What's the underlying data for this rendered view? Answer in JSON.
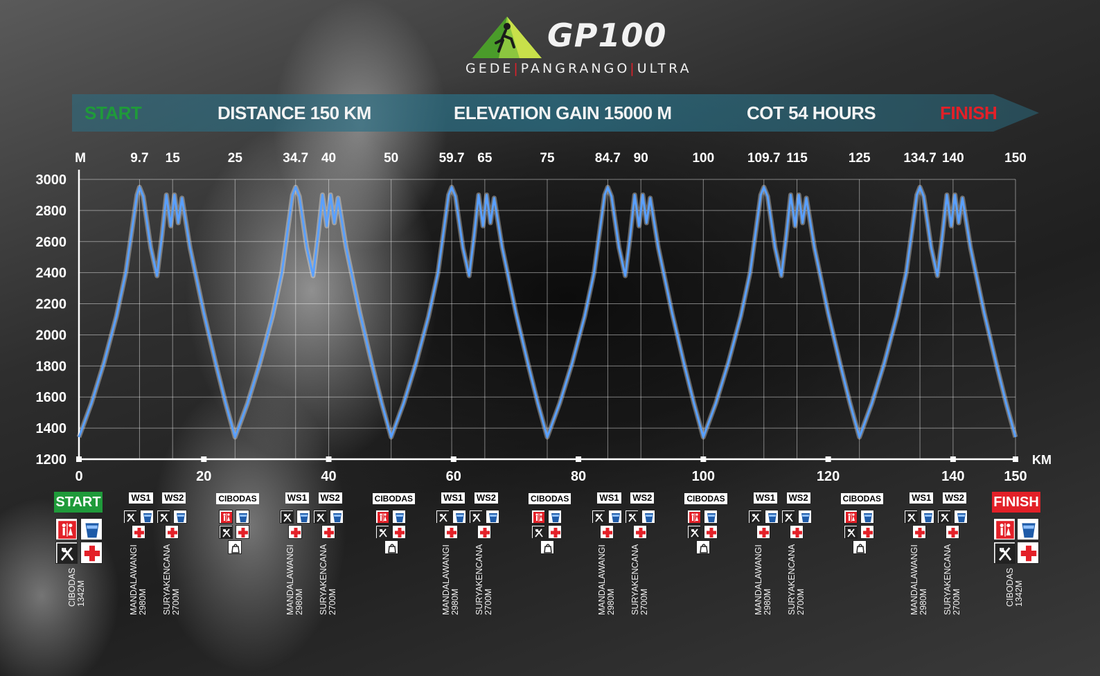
{
  "logo": {
    "title": "GP100",
    "sub_parts": [
      "GEDE",
      "PANGRANGO",
      "ULTRA"
    ]
  },
  "banner": {
    "start": "START",
    "distance": "DISTANCE 150 KM",
    "elevation": "ELEVATION GAIN 15000 M",
    "cot": "COT 54 HOURS",
    "finish": "FINISH"
  },
  "colors": {
    "start_green": "#1f9a3a",
    "finish_red": "#e32028",
    "line_blue": "#5aa0ff",
    "banner_teal": "#2a6f85"
  },
  "chart_data": {
    "type": "line",
    "ylabel": "M",
    "xlabel": "KM",
    "ylim": [
      1200,
      3000
    ],
    "xlim": [
      0,
      150
    ],
    "y_ticks": [
      1200,
      1400,
      1600,
      1800,
      2000,
      2200,
      2400,
      2600,
      2800,
      3000
    ],
    "x_ticks_bottom": [
      0,
      20,
      40,
      60,
      80,
      100,
      120,
      140,
      150
    ],
    "x_ticks_top": [
      "9.7",
      "15",
      "25",
      "34.7",
      "40",
      "50",
      "59.7",
      "65",
      "75",
      "84.7",
      "90",
      "100",
      "109.7",
      "115",
      "125",
      "134.7",
      "140",
      "150"
    ],
    "grid": true,
    "series": [
      {
        "x": [
          0,
          2,
          4,
          6,
          7.5,
          9.3,
          9.7,
          10.3,
          11.5,
          12.5,
          13.3,
          14,
          14.7,
          15.3,
          15.9,
          16.5,
          17.8,
          20,
          22,
          23.5,
          25,
          27,
          29,
          31,
          32.5,
          34.2,
          34.7,
          35.3,
          36.5,
          37.5,
          38.3,
          39,
          39.7,
          40.3,
          40.9,
          41.5,
          42.8,
          45,
          47,
          48.5,
          50,
          52,
          54,
          56,
          57.5,
          59.2,
          59.7,
          60.3,
          61.5,
          62.5,
          63.3,
          64,
          64.7,
          65.3,
          65.9,
          66.5,
          67.8,
          70,
          72,
          73.5,
          75,
          77,
          79,
          81,
          82.5,
          84.2,
          84.7,
          85.3,
          86.5,
          87.5,
          88.3,
          89,
          89.7,
          90.3,
          90.9,
          91.5,
          92.8,
          95,
          97,
          98.5,
          100,
          102,
          104,
          106,
          107.5,
          109.2,
          109.7,
          110.3,
          111.5,
          112.5,
          113.3,
          114,
          114.7,
          115.3,
          115.9,
          116.5,
          117.8,
          120,
          122,
          123.5,
          125,
          127,
          129,
          131,
          132.5,
          134.2,
          134.7,
          135.3,
          136.5,
          137.5,
          138.3,
          139,
          139.7,
          140.3,
          140.9,
          141.5,
          142.8,
          145,
          147,
          148.5,
          150
        ],
        "y": [
          1342,
          1560,
          1820,
          2120,
          2400,
          2900,
          2950,
          2890,
          2560,
          2380,
          2640,
          2900,
          2700,
          2900,
          2720,
          2880,
          2560,
          2140,
          1800,
          1560,
          1342,
          1560,
          1820,
          2120,
          2400,
          2900,
          2950,
          2890,
          2560,
          2380,
          2640,
          2900,
          2700,
          2900,
          2720,
          2880,
          2560,
          2140,
          1800,
          1560,
          1342,
          1560,
          1820,
          2120,
          2400,
          2900,
          2950,
          2890,
          2560,
          2380,
          2640,
          2900,
          2700,
          2900,
          2720,
          2880,
          2560,
          2140,
          1800,
          1560,
          1342,
          1560,
          1820,
          2120,
          2400,
          2900,
          2950,
          2890,
          2560,
          2380,
          2640,
          2900,
          2700,
          2900,
          2720,
          2880,
          2560,
          2140,
          1800,
          1560,
          1342,
          1560,
          1820,
          2120,
          2400,
          2900,
          2950,
          2890,
          2560,
          2380,
          2640,
          2900,
          2700,
          2900,
          2720,
          2880,
          2560,
          2140,
          1800,
          1560,
          1342,
          1560,
          1820,
          2120,
          2400,
          2900,
          2950,
          2890,
          2560,
          2380,
          2640,
          2900,
          2700,
          2900,
          2720,
          2880,
          2560,
          2140,
          1800,
          1560,
          1342
        ]
      }
    ]
  },
  "checkpoints": {
    "start": {
      "label": "START",
      "name": "CIBODAS",
      "elev": "1342M",
      "icons": [
        "toilet-icon",
        "water-icon",
        "food-icon",
        "medical-icon"
      ]
    },
    "finish": {
      "label": "FINISH",
      "name": "CIBODAS",
      "elev": "1342M",
      "icons": [
        "toilet-icon",
        "water-icon",
        "food-icon",
        "medical-icon"
      ]
    },
    "stations": [
      {
        "type": "ws",
        "label": "WS1",
        "km": 9.7,
        "name": "MANDALAWANGI",
        "elev": "2980M"
      },
      {
        "type": "ws",
        "label": "WS2",
        "km": 15,
        "name": "SURYAKENCANA",
        "elev": "2700M"
      },
      {
        "type": "cib",
        "label": "CIBODAS",
        "km": 25
      },
      {
        "type": "ws",
        "label": "WS1",
        "km": 34.7,
        "name": "MANDALAWANGI",
        "elev": "2980M"
      },
      {
        "type": "ws",
        "label": "WS2",
        "km": 40,
        "name": "SURYAKENCANA",
        "elev": "2700M"
      },
      {
        "type": "cib",
        "label": "CIBODAS",
        "km": 50
      },
      {
        "type": "ws",
        "label": "WS1",
        "km": 59.7,
        "name": "MANDALAWANGI",
        "elev": "2980M"
      },
      {
        "type": "ws",
        "label": "WS2",
        "km": 65,
        "name": "SURYAKENCANA",
        "elev": "2700M"
      },
      {
        "type": "cib",
        "label": "CIBODAS",
        "km": 75
      },
      {
        "type": "ws",
        "label": "WS1",
        "km": 84.7,
        "name": "MANDALAWANGI",
        "elev": "2980M"
      },
      {
        "type": "ws",
        "label": "WS2",
        "km": 90,
        "name": "SURYAKENCANA",
        "elev": "2700M"
      },
      {
        "type": "cib",
        "label": "CIBODAS",
        "km": 100
      },
      {
        "type": "ws",
        "label": "WS1",
        "km": 109.7,
        "name": "MANDALAWANGI",
        "elev": "2980M"
      },
      {
        "type": "ws",
        "label": "WS2",
        "km": 115,
        "name": "SURYAKENCANA",
        "elev": "2700M"
      },
      {
        "type": "cib",
        "label": "CIBODAS",
        "km": 125
      },
      {
        "type": "ws",
        "label": "WS1",
        "km": 134.7,
        "name": "MANDALAWANGI",
        "elev": "2980M"
      },
      {
        "type": "ws",
        "label": "WS2",
        "km": 140,
        "name": "SURYAKENCANA",
        "elev": "2700M"
      }
    ],
    "ws_icons": [
      "food-icon",
      "water-icon",
      "medical-icon"
    ],
    "cib_icons": [
      "toilet-icon",
      "water-icon",
      "food-icon",
      "medical-icon",
      "bag-icon"
    ]
  }
}
